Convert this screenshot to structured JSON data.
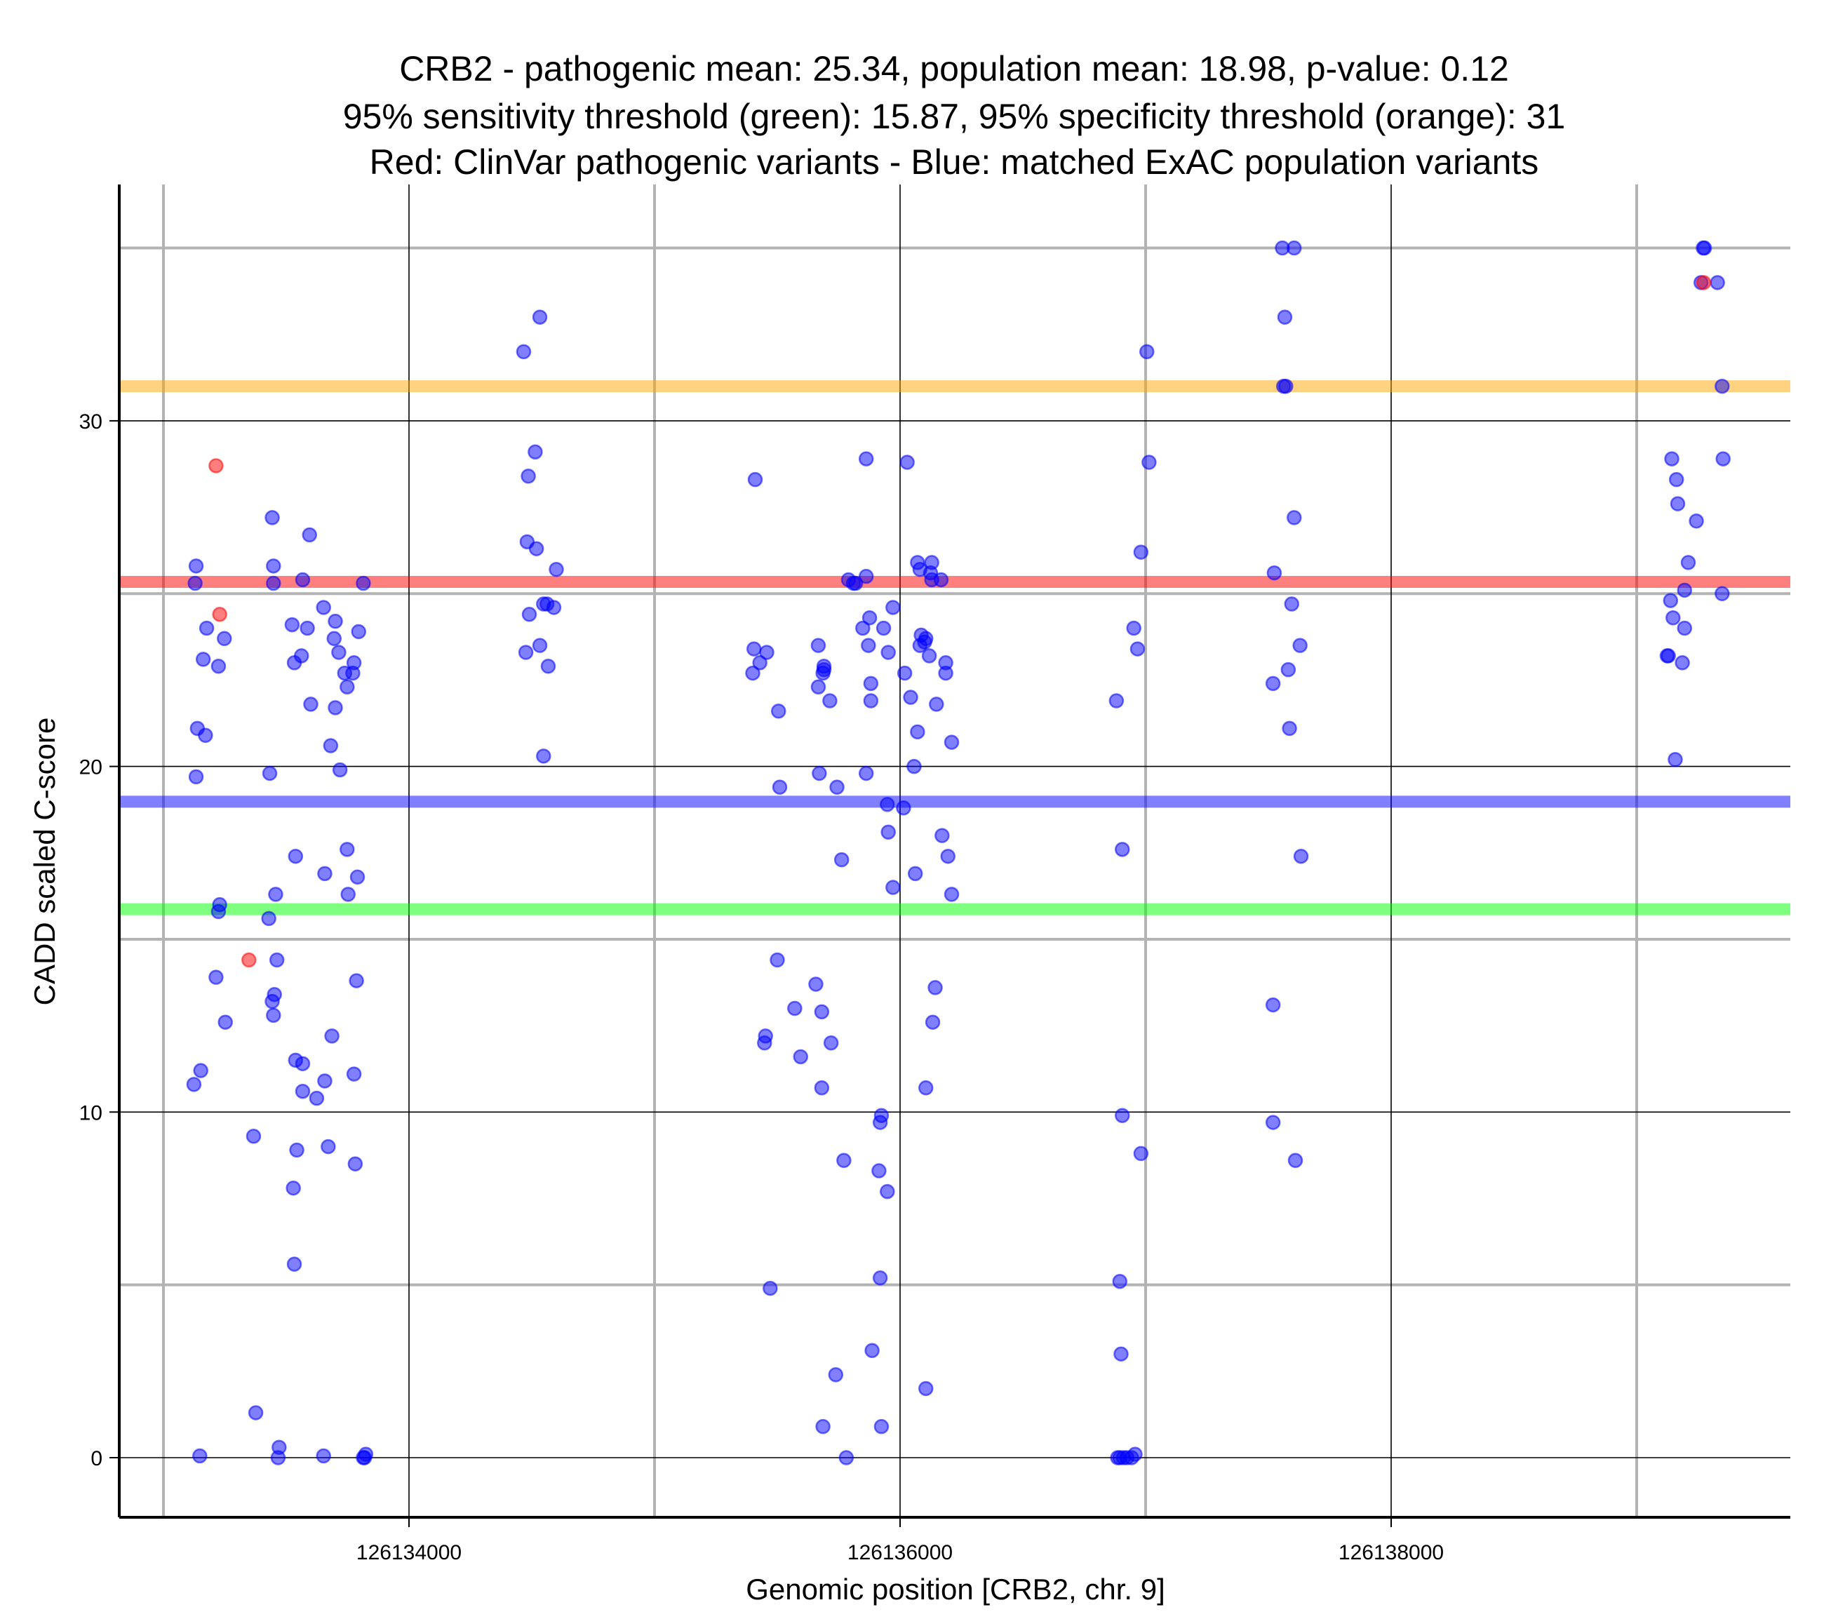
{
  "chart_data": {
    "type": "scatter",
    "title_lines": [
      "CRB2 - pathogenic mean: 25.34, population mean: 18.98, p-value: 0.12",
      "95% sensitivity threshold (green): 15.87, 95% specificity threshold (orange): 31",
      "Red: ClinVar pathogenic variants - Blue: matched ExAC population variants"
    ],
    "xlabel": "Genomic position [CRB2, chr. 9]",
    "ylabel": "CADD scaled C-score",
    "xlim": [
      126132900,
      126139700
    ],
    "ylim": [
      -1.8,
      36.9
    ],
    "x_ticks": [
      126134000,
      126136000,
      126138000
    ],
    "x_tick_labels": [
      "126134000",
      "126136000",
      "126138000"
    ],
    "x_minor_grid": [
      126133000,
      126135000,
      126137000,
      126139000
    ],
    "y_ticks": [
      0,
      10,
      20,
      30
    ],
    "y_tick_labels": [
      "0",
      "10",
      "20",
      "30"
    ],
    "y_minor_grid": [
      5,
      15,
      25,
      35
    ],
    "grid": true,
    "legend": "none",
    "colors": {
      "pathogenic": "#ff0000",
      "population": "#0000ff",
      "sensitivity_threshold": "#00ff00",
      "specificity_threshold": "#ffa500"
    },
    "reference_lines": [
      {
        "name": "specificity-threshold",
        "label": "95% specificity threshold",
        "value": 31,
        "color": "#ffa500"
      },
      {
        "name": "pathogenic-mean",
        "label": "pathogenic mean",
        "value": 25.34,
        "color": "#ff0000"
      },
      {
        "name": "population-mean",
        "label": "population mean",
        "value": 18.98,
        "color": "#0000ff"
      },
      {
        "name": "sensitivity-threshold",
        "label": "95% sensitivity threshold",
        "value": 15.87,
        "color": "#00ff00"
      }
    ],
    "series": [
      {
        "name": "ClinVar pathogenic variants",
        "color": "#ff0000",
        "points": [
          [
            126133214,
            28.7
          ],
          [
            126133229,
            24.4
          ],
          [
            126133348,
            14.4
          ],
          [
            126139273,
            34.0
          ]
        ]
      },
      {
        "name": "matched ExAC population variants",
        "color": "#0000ff",
        "points": [
          [
            126133133,
            25.8
          ],
          [
            126133129,
            25.3
          ],
          [
            126133176,
            24.0
          ],
          [
            126133162,
            23.1
          ],
          [
            126133224,
            22.9
          ],
          [
            126133248,
            23.7
          ],
          [
            126133138,
            21.1
          ],
          [
            126133171,
            20.9
          ],
          [
            126133133,
            19.7
          ],
          [
            126133229,
            16.0
          ],
          [
            126133224,
            15.8
          ],
          [
            126133214,
            13.9
          ],
          [
            126133252,
            12.6
          ],
          [
            126133124,
            10.8
          ],
          [
            126133152,
            11.2
          ],
          [
            126133148,
            0.05
          ],
          [
            126133376,
            1.3
          ],
          [
            126133443,
            27.2
          ],
          [
            126133448,
            25.8
          ],
          [
            126133448,
            25.3
          ],
          [
            126133595,
            26.7
          ],
          [
            126133567,
            25.4
          ],
          [
            126133524,
            24.1
          ],
          [
            126133586,
            24.0
          ],
          [
            126133652,
            24.6
          ],
          [
            126133700,
            24.2
          ],
          [
            126133795,
            23.9
          ],
          [
            126133562,
            23.2
          ],
          [
            126133533,
            23.0
          ],
          [
            126133695,
            23.7
          ],
          [
            126133714,
            23.3
          ],
          [
            126133776,
            23.0
          ],
          [
            126133738,
            22.7
          ],
          [
            126133771,
            22.7
          ],
          [
            126133748,
            22.3
          ],
          [
            126133600,
            21.8
          ],
          [
            126133700,
            21.7
          ],
          [
            126133681,
            20.6
          ],
          [
            126133719,
            19.9
          ],
          [
            126133433,
            19.8
          ],
          [
            126133814,
            25.3
          ],
          [
            126133538,
            17.4
          ],
          [
            126133748,
            17.6
          ],
          [
            126133657,
            16.9
          ],
          [
            126133790,
            16.8
          ],
          [
            126133752,
            16.3
          ],
          [
            126133457,
            16.3
          ],
          [
            126133429,
            15.6
          ],
          [
            126133462,
            14.4
          ],
          [
            126133786,
            13.8
          ],
          [
            126133443,
            13.2
          ],
          [
            126133452,
            13.4
          ],
          [
            126133448,
            12.8
          ],
          [
            126133686,
            12.2
          ],
          [
            126133538,
            11.5
          ],
          [
            126133567,
            11.4
          ],
          [
            126133776,
            11.1
          ],
          [
            126133657,
            10.9
          ],
          [
            126133567,
            10.6
          ],
          [
            126133624,
            10.4
          ],
          [
            126133367,
            9.3
          ],
          [
            126133543,
            8.9
          ],
          [
            126133671,
            9.0
          ],
          [
            126133781,
            8.5
          ],
          [
            126133529,
            7.8
          ],
          [
            126133533,
            5.6
          ],
          [
            126133471,
            0.3
          ],
          [
            126133467,
            0.0
          ],
          [
            126133652,
            0.05
          ],
          [
            126133814,
            0.0
          ],
          [
            126133824,
            0.1
          ],
          [
            126133819,
            0.0
          ],
          [
            126134467,
            32.0
          ],
          [
            126134533,
            33.0
          ],
          [
            126134514,
            29.1
          ],
          [
            126134486,
            28.4
          ],
          [
            126134481,
            26.5
          ],
          [
            126134519,
            26.3
          ],
          [
            126134600,
            25.7
          ],
          [
            126134548,
            24.7
          ],
          [
            126134562,
            24.7
          ],
          [
            126134590,
            24.6
          ],
          [
            126134490,
            24.4
          ],
          [
            126134476,
            23.3
          ],
          [
            126134533,
            23.5
          ],
          [
            126134567,
            22.9
          ],
          [
            126134548,
            20.3
          ],
          [
            126135410,
            28.3
          ],
          [
            126135405,
            23.4
          ],
          [
            126135400,
            22.7
          ],
          [
            126135429,
            23.0
          ],
          [
            126135457,
            23.3
          ],
          [
            126135505,
            21.6
          ],
          [
            126135510,
            19.4
          ],
          [
            126135452,
            12.2
          ],
          [
            126135448,
            12.0
          ],
          [
            126135500,
            14.4
          ],
          [
            126135471,
            4.9
          ],
          [
            126135571,
            13.0
          ],
          [
            126135595,
            11.6
          ],
          [
            126135657,
            13.7
          ],
          [
            126135681,
            12.9
          ],
          [
            126135719,
            12.0
          ],
          [
            126135681,
            10.7
          ],
          [
            126135667,
            22.3
          ],
          [
            126135667,
            23.5
          ],
          [
            126135690,
            22.9
          ],
          [
            126135686,
            22.7
          ],
          [
            126135690,
            22.8
          ],
          [
            126135714,
            21.9
          ],
          [
            126135671,
            19.8
          ],
          [
            126135743,
            19.4
          ],
          [
            126135762,
            17.3
          ],
          [
            126135771,
            8.6
          ],
          [
            126135738,
            2.4
          ],
          [
            126135686,
            0.9
          ],
          [
            126135781,
            0.0
          ],
          [
            126135862,
            28.9
          ],
          [
            126135790,
            25.4
          ],
          [
            126135810,
            25.3
          ],
          [
            126135819,
            25.3
          ],
          [
            126135862,
            25.5
          ],
          [
            126135876,
            24.3
          ],
          [
            126135848,
            24.0
          ],
          [
            126135933,
            24.0
          ],
          [
            126135871,
            23.5
          ],
          [
            126135952,
            23.3
          ],
          [
            126135881,
            22.4
          ],
          [
            126135881,
            21.9
          ],
          [
            126135862,
            19.8
          ],
          [
            126135924,
            9.9
          ],
          [
            126135919,
            9.7
          ],
          [
            126135914,
            8.3
          ],
          [
            126135948,
            7.7
          ],
          [
            126135919,
            5.2
          ],
          [
            126135886,
            3.1
          ],
          [
            126135924,
            0.9
          ],
          [
            126136029,
            28.8
          ],
          [
            126135971,
            24.6
          ],
          [
            126136071,
            25.9
          ],
          [
            126136081,
            25.7
          ],
          [
            126136124,
            25.6
          ],
          [
            126136129,
            25.9
          ],
          [
            126136129,
            25.4
          ],
          [
            126136167,
            25.4
          ],
          [
            126136086,
            23.8
          ],
          [
            126136100,
            23.6
          ],
          [
            126136081,
            23.5
          ],
          [
            126136105,
            23.7
          ],
          [
            126136119,
            23.2
          ],
          [
            126136186,
            23.0
          ],
          [
            126136186,
            22.7
          ],
          [
            126136019,
            22.7
          ],
          [
            126136043,
            22.0
          ],
          [
            126136148,
            21.8
          ],
          [
            126136071,
            21.0
          ],
          [
            126136210,
            20.7
          ],
          [
            126136057,
            20.0
          ],
          [
            126135948,
            18.9
          ],
          [
            126136014,
            18.8
          ],
          [
            126135952,
            18.1
          ],
          [
            126136171,
            18.0
          ],
          [
            126136195,
            17.4
          ],
          [
            126136062,
            16.9
          ],
          [
            126135971,
            16.5
          ],
          [
            126136210,
            16.3
          ],
          [
            126136143,
            13.6
          ],
          [
            126136133,
            12.6
          ],
          [
            126136105,
            10.7
          ],
          [
            126136105,
            2.0
          ],
          [
            126136881,
            21.9
          ],
          [
            126136905,
            17.6
          ],
          [
            126136952,
            24.0
          ],
          [
            126136967,
            23.4
          ],
          [
            126136981,
            26.2
          ],
          [
            126137014,
            28.8
          ],
          [
            126137005,
            32.0
          ],
          [
            126136905,
            9.9
          ],
          [
            126136981,
            8.8
          ],
          [
            126136895,
            5.1
          ],
          [
            126136900,
            3.0
          ],
          [
            126136886,
            0.0
          ],
          [
            126136895,
            0.0
          ],
          [
            126136910,
            0.0
          ],
          [
            126136924,
            0.0
          ],
          [
            126136957,
            0.1
          ],
          [
            126136943,
            0.0
          ],
          [
            126137557,
            35.0
          ],
          [
            126137605,
            35.0
          ],
          [
            126137567,
            33.0
          ],
          [
            126137562,
            31.0
          ],
          [
            126137571,
            31.0
          ],
          [
            126137605,
            27.2
          ],
          [
            126137524,
            25.6
          ],
          [
            126137595,
            24.7
          ],
          [
            126137629,
            23.5
          ],
          [
            126137581,
            22.8
          ],
          [
            126137519,
            22.4
          ],
          [
            126137586,
            21.1
          ],
          [
            126137633,
            17.4
          ],
          [
            126137519,
            13.1
          ],
          [
            126137519,
            9.7
          ],
          [
            126137610,
            8.6
          ],
          [
            126139271,
            35.0
          ],
          [
            126139276,
            35.0
          ],
          [
            126139262,
            34.0
          ],
          [
            126139329,
            34.0
          ],
          [
            126139348,
            31.0
          ],
          [
            126139143,
            28.9
          ],
          [
            126139352,
            28.9
          ],
          [
            126139162,
            28.3
          ],
          [
            126139167,
            27.6
          ],
          [
            126139243,
            27.1
          ],
          [
            126139210,
            25.9
          ],
          [
            126139195,
            25.1
          ],
          [
            126139348,
            25.0
          ],
          [
            126139138,
            24.8
          ],
          [
            126139148,
            24.3
          ],
          [
            126139195,
            24.0
          ],
          [
            126139129,
            23.2
          ],
          [
            126139124,
            23.2
          ],
          [
            126139186,
            23.0
          ],
          [
            126139157,
            20.2
          ]
        ]
      }
    ]
  }
}
